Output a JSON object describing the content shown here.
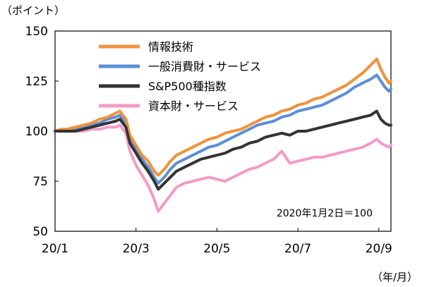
{
  "chart_data": {
    "type": "line",
    "y_unit_label": "（ポイント）",
    "x_unit_label": "（年/月）",
    "annotation": "2020年1月2日＝100",
    "ylim": [
      50,
      150
    ],
    "yticks": [
      150,
      125,
      100,
      75,
      50
    ],
    "xticks": [
      {
        "label": "20/1",
        "x": 0
      },
      {
        "label": "20/3",
        "x": 2
      },
      {
        "label": "20/5",
        "x": 4
      },
      {
        "label": "20/7",
        "x": 6
      },
      {
        "label": "20/9",
        "x": 8
      }
    ],
    "xlim": [
      0,
      8.3
    ],
    "legend_position": "top-center",
    "series": [
      {
        "name": "情報技術",
        "color": "#F0923C",
        "points": [
          [
            0,
            100
          ],
          [
            0.15,
            101
          ],
          [
            0.3,
            101
          ],
          [
            0.5,
            102
          ],
          [
            0.7,
            103
          ],
          [
            0.9,
            104
          ],
          [
            1.1,
            106
          ],
          [
            1.3,
            107
          ],
          [
            1.5,
            109
          ],
          [
            1.6,
            110
          ],
          [
            1.75,
            106
          ],
          [
            1.85,
            98
          ],
          [
            2.0,
            93
          ],
          [
            2.15,
            88
          ],
          [
            2.3,
            85
          ],
          [
            2.45,
            80
          ],
          [
            2.55,
            78
          ],
          [
            2.7,
            81
          ],
          [
            2.85,
            85
          ],
          [
            3.0,
            88
          ],
          [
            3.2,
            90
          ],
          [
            3.4,
            92
          ],
          [
            3.6,
            94
          ],
          [
            3.8,
            96
          ],
          [
            4.0,
            97
          ],
          [
            4.2,
            99
          ],
          [
            4.4,
            100
          ],
          [
            4.6,
            101
          ],
          [
            4.8,
            103
          ],
          [
            5.0,
            105
          ],
          [
            5.2,
            107
          ],
          [
            5.4,
            108
          ],
          [
            5.6,
            110
          ],
          [
            5.8,
            111
          ],
          [
            6.0,
            113
          ],
          [
            6.2,
            114
          ],
          [
            6.4,
            116
          ],
          [
            6.6,
            117
          ],
          [
            6.8,
            119
          ],
          [
            7.0,
            121
          ],
          [
            7.2,
            123
          ],
          [
            7.4,
            126
          ],
          [
            7.6,
            129
          ],
          [
            7.8,
            133
          ],
          [
            7.95,
            136
          ],
          [
            8.05,
            131
          ],
          [
            8.15,
            127
          ],
          [
            8.25,
            124
          ],
          [
            8.3,
            125
          ]
        ]
      },
      {
        "name": "一般消費財・サービス",
        "color": "#5B8FD6",
        "points": [
          [
            0,
            100
          ],
          [
            0.15,
            100
          ],
          [
            0.3,
            100
          ],
          [
            0.5,
            101
          ],
          [
            0.7,
            102
          ],
          [
            0.9,
            103
          ],
          [
            1.1,
            104
          ],
          [
            1.3,
            106
          ],
          [
            1.5,
            107
          ],
          [
            1.6,
            108
          ],
          [
            1.75,
            104
          ],
          [
            1.85,
            96
          ],
          [
            2.0,
            91
          ],
          [
            2.15,
            86
          ],
          [
            2.3,
            82
          ],
          [
            2.45,
            77
          ],
          [
            2.55,
            74
          ],
          [
            2.7,
            77
          ],
          [
            2.85,
            81
          ],
          [
            3.0,
            84
          ],
          [
            3.2,
            86
          ],
          [
            3.4,
            88
          ],
          [
            3.6,
            90
          ],
          [
            3.8,
            92
          ],
          [
            4.0,
            93
          ],
          [
            4.2,
            95
          ],
          [
            4.4,
            97
          ],
          [
            4.6,
            99
          ],
          [
            4.8,
            101
          ],
          [
            5.0,
            103
          ],
          [
            5.2,
            104
          ],
          [
            5.4,
            105
          ],
          [
            5.6,
            107
          ],
          [
            5.8,
            108
          ],
          [
            6.0,
            110
          ],
          [
            6.2,
            111
          ],
          [
            6.4,
            112
          ],
          [
            6.6,
            113
          ],
          [
            6.8,
            115
          ],
          [
            7.0,
            117
          ],
          [
            7.2,
            119
          ],
          [
            7.4,
            122
          ],
          [
            7.6,
            124
          ],
          [
            7.8,
            126
          ],
          [
            7.95,
            128
          ],
          [
            8.05,
            125
          ],
          [
            8.15,
            122
          ],
          [
            8.25,
            120
          ],
          [
            8.3,
            121
          ]
        ]
      },
      {
        "name": "S&P500種指数",
        "color": "#333333",
        "points": [
          [
            0,
            100
          ],
          [
            0.15,
            100
          ],
          [
            0.3,
            100
          ],
          [
            0.5,
            100
          ],
          [
            0.7,
            101
          ],
          [
            0.9,
            102
          ],
          [
            1.1,
            103
          ],
          [
            1.3,
            104
          ],
          [
            1.5,
            105
          ],
          [
            1.6,
            106
          ],
          [
            1.75,
            102
          ],
          [
            1.85,
            94
          ],
          [
            2.0,
            89
          ],
          [
            2.15,
            84
          ],
          [
            2.3,
            80
          ],
          [
            2.45,
            75
          ],
          [
            2.55,
            71
          ],
          [
            2.7,
            74
          ],
          [
            2.85,
            77
          ],
          [
            3.0,
            80
          ],
          [
            3.2,
            82
          ],
          [
            3.4,
            84
          ],
          [
            3.6,
            86
          ],
          [
            3.8,
            87
          ],
          [
            4.0,
            88
          ],
          [
            4.2,
            89
          ],
          [
            4.4,
            91
          ],
          [
            4.6,
            92
          ],
          [
            4.8,
            94
          ],
          [
            5.0,
            95
          ],
          [
            5.2,
            97
          ],
          [
            5.4,
            98
          ],
          [
            5.6,
            99
          ],
          [
            5.8,
            98
          ],
          [
            6.0,
            100
          ],
          [
            6.2,
            100
          ],
          [
            6.4,
            101
          ],
          [
            6.6,
            102
          ],
          [
            6.8,
            103
          ],
          [
            7.0,
            104
          ],
          [
            7.2,
            105
          ],
          [
            7.4,
            106
          ],
          [
            7.6,
            107
          ],
          [
            7.8,
            108
          ],
          [
            7.95,
            110
          ],
          [
            8.05,
            106
          ],
          [
            8.15,
            104
          ],
          [
            8.25,
            103
          ],
          [
            8.3,
            103
          ]
        ]
      },
      {
        "name": "資本財・サービス",
        "color": "#F29BC9",
        "points": [
          [
            0,
            100
          ],
          [
            0.15,
            100
          ],
          [
            0.3,
            100
          ],
          [
            0.5,
            100
          ],
          [
            0.7,
            100
          ],
          [
            0.9,
            101
          ],
          [
            1.1,
            101
          ],
          [
            1.3,
            102
          ],
          [
            1.5,
            102
          ],
          [
            1.6,
            103
          ],
          [
            1.75,
            99
          ],
          [
            1.85,
            90
          ],
          [
            2.0,
            83
          ],
          [
            2.15,
            78
          ],
          [
            2.3,
            73
          ],
          [
            2.45,
            66
          ],
          [
            2.55,
            60
          ],
          [
            2.7,
            64
          ],
          [
            2.85,
            68
          ],
          [
            3.0,
            72
          ],
          [
            3.2,
            74
          ],
          [
            3.4,
            75
          ],
          [
            3.6,
            76
          ],
          [
            3.8,
            77
          ],
          [
            4.0,
            76
          ],
          [
            4.2,
            75
          ],
          [
            4.4,
            77
          ],
          [
            4.6,
            79
          ],
          [
            4.8,
            81
          ],
          [
            5.0,
            82
          ],
          [
            5.2,
            84
          ],
          [
            5.4,
            86
          ],
          [
            5.6,
            90
          ],
          [
            5.8,
            84
          ],
          [
            6.0,
            85
          ],
          [
            6.2,
            86
          ],
          [
            6.4,
            87
          ],
          [
            6.6,
            87
          ],
          [
            6.8,
            88
          ],
          [
            7.0,
            89
          ],
          [
            7.2,
            90
          ],
          [
            7.4,
            91
          ],
          [
            7.6,
            92
          ],
          [
            7.8,
            94
          ],
          [
            7.95,
            96
          ],
          [
            8.05,
            94
          ],
          [
            8.15,
            93
          ],
          [
            8.25,
            92
          ],
          [
            8.3,
            93
          ]
        ]
      }
    ]
  }
}
